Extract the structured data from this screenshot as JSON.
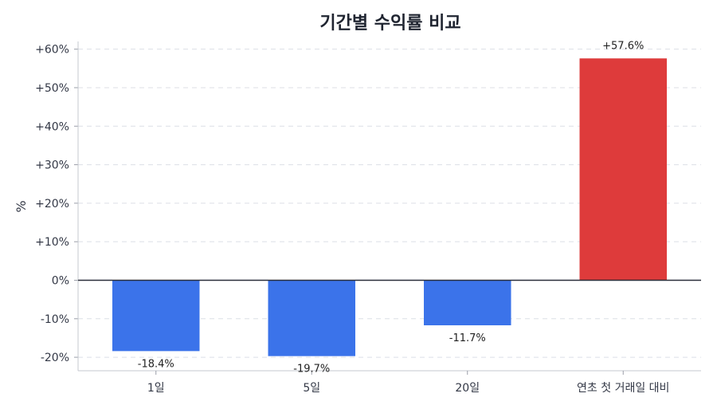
{
  "chart_data": {
    "type": "bar",
    "title": "기간별 수익률 비교",
    "ylabel": "%",
    "xlabel": "",
    "categories": [
      "1일",
      "5일",
      "20일",
      "연초 첫 거래일 대비"
    ],
    "values": [
      -18.4,
      -19.7,
      -11.7,
      57.6
    ],
    "data_labels": [
      "-18.4%",
      "-19.7%",
      "-11.7%",
      "+57.6%"
    ],
    "ylim": [
      -23.5,
      62
    ],
    "yticks": [
      -20,
      -10,
      0,
      10,
      20,
      30,
      40,
      50,
      60
    ],
    "ytick_labels": [
      "-20%",
      "-10%",
      "0%",
      "+10%",
      "+20%",
      "+30%",
      "+40%",
      "+50%",
      "+60%"
    ],
    "grid": true,
    "colors": {
      "positive": "#de3b3b",
      "negative": "#3b73ea"
    }
  }
}
